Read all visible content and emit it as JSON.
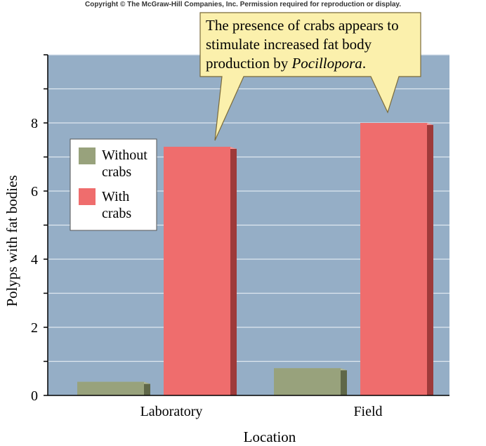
{
  "copyright": "Copyright © The McGraw-Hill Companies, Inc. Permission required for reproduction or display.",
  "colors": {
    "plot_background": "#95aec6",
    "without_crabs": "#98a27c",
    "with_crabs": "#ef6d6d",
    "callout_fill": "#fbf0ac"
  },
  "callout": {
    "line1": "The presence of crabs appears to",
    "line2": "stimulate increased fat body",
    "line3_prefix": "production by ",
    "line3_italic": "Pocillopora",
    "line3_suffix": "."
  },
  "chart_data": {
    "type": "bar",
    "categories": [
      "Laboratory",
      "Field"
    ],
    "series": [
      {
        "name": "Without\ncrabs",
        "values": [
          0.4,
          0.8
        ]
      },
      {
        "name": "With\ncrabs",
        "values": [
          7.3,
          8.0
        ]
      }
    ],
    "xlabel": "Location",
    "ylabel": "Polyps with fat bodies",
    "ylim": [
      0,
      10
    ],
    "yticks": [
      0,
      2,
      4,
      6,
      8
    ],
    "grid": true,
    "legend_position": "left"
  }
}
